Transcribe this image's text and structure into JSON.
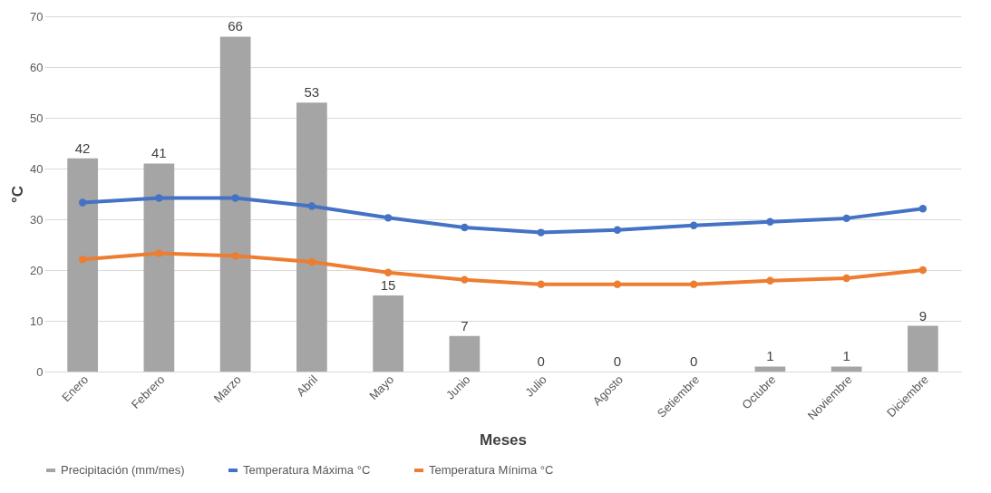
{
  "chart_data": {
    "type": "line",
    "xlabel": "Meses",
    "ylabel": "°C",
    "categories": [
      "Enero",
      "Febrero",
      "Marzo",
      "Abril",
      "Mayo",
      "Junio",
      "Julio",
      "Agosto",
      "Setiembre",
      "Octubre",
      "Noviembre",
      "Diciembre"
    ],
    "series": [
      {
        "name": "Precipitación (mm/mes)",
        "type": "bar",
        "color": "#a5a5a5",
        "values": [
          42,
          41,
          66,
          53,
          15,
          7,
          0,
          0,
          0,
          1,
          1,
          9
        ],
        "value_labels": [
          "42",
          "41",
          "66",
          "53",
          "15",
          "7",
          "0",
          "0",
          "0",
          "1",
          "1",
          "9"
        ]
      },
      {
        "name": "Temperatura Máxima °C",
        "color": "#4472c4",
        "values": [
          33.3,
          34.2,
          34.2,
          32.6,
          30.3,
          28.4,
          27.4,
          27.9,
          28.8,
          29.5,
          30.2,
          32.1
        ]
      },
      {
        "name": "Temperatura Mínima °C",
        "color": "#ed7d31",
        "values": [
          22.1,
          23.3,
          22.8,
          21.6,
          19.5,
          18.1,
          17.2,
          17.2,
          17.2,
          17.9,
          18.4,
          20
        ]
      }
    ],
    "ylim": [
      0,
      70
    ],
    "yticks": [
      0,
      10,
      20,
      30,
      40,
      50,
      60,
      70
    ],
    "grid": "y",
    "legend": "bottom",
    "marker": "circle",
    "line_style": "solid"
  }
}
